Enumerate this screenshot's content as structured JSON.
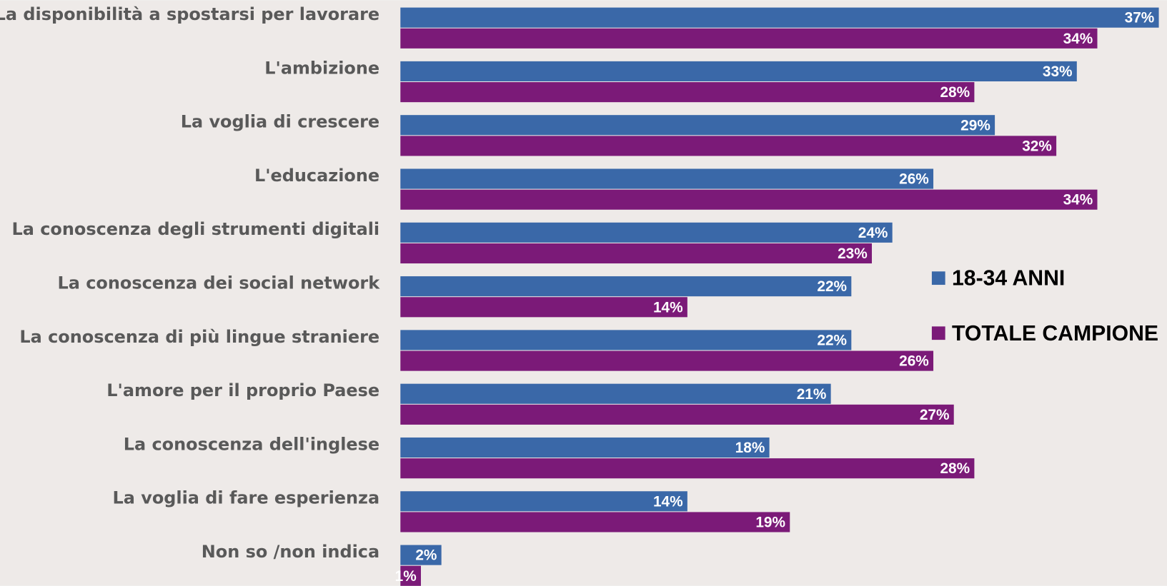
{
  "chart_data": {
    "type": "hbar",
    "categories": [
      "La disponibilità a spostarsi per lavorare",
      "L'ambizione",
      "La voglia di crescere",
      "L'educazione",
      "La conoscenza degli strumenti digitali",
      "La conoscenza dei social network",
      "La conoscenza di più lingue straniere",
      "L'amore per il proprio Paese",
      "La conoscenza dell'inglese",
      "La voglia di fare esperienza",
      "Non so /non indica"
    ],
    "series": [
      {
        "name": "18-34 ANNI",
        "color": "#3a68a8",
        "values": [
          37,
          33,
          29,
          26,
          24,
          22,
          22,
          21,
          18,
          14,
          2
        ],
        "value_labels": [
          "37%",
          "33%",
          "29%",
          "26%",
          "24%",
          "22%",
          "22%",
          "21%",
          "18%",
          "14%",
          "2%"
        ]
      },
      {
        "name": "TOTALE CAMPIONE",
        "color": "#7b1a78",
        "values": [
          34,
          28,
          32,
          34,
          23,
          14,
          26,
          27,
          28,
          19,
          1
        ],
        "value_labels": [
          "34%",
          "28%",
          "32%",
          "34%",
          "23%",
          "14%",
          "26%",
          "27%",
          "28%",
          "19%",
          "1%"
        ]
      }
    ],
    "xlim": [
      0,
      37
    ],
    "legend": "right"
  }
}
